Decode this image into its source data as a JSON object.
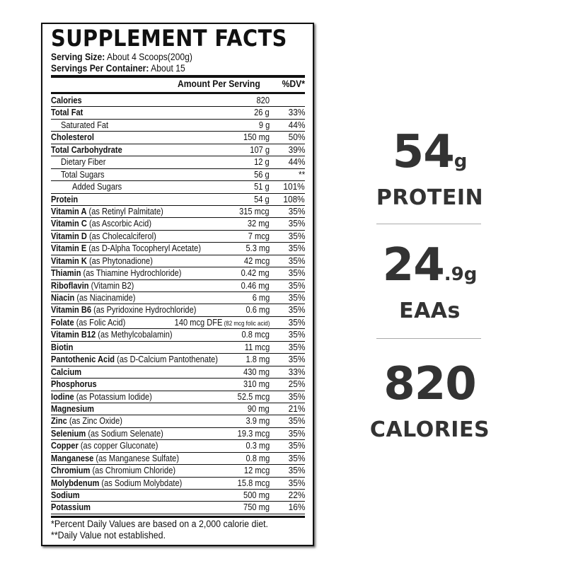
{
  "label": {
    "title": "SUPPLEMENT FACTS",
    "serving_size_label": "Serving Size:",
    "serving_size": " About 4 Scoops(200g)",
    "servings_label": "Servings Per Container:",
    "servings": " About 15",
    "amount_header": "Amount Per Serving",
    "dv_header": "%DV*",
    "rows": [
      {
        "name": "Calories",
        "sub": "",
        "amount": "820",
        "dv": "",
        "indent": 0
      },
      {
        "name": "Total Fat",
        "sub": "",
        "amount": "26 g",
        "dv": "33%",
        "indent": 0
      },
      {
        "name": "",
        "sub": "Saturated Fat",
        "amount": "9 g",
        "dv": "44%",
        "indent": 1
      },
      {
        "name": "Cholesterol",
        "sub": "",
        "amount": "150 mg",
        "dv": "50%",
        "indent": 0
      },
      {
        "name": "Total Carbohydrate",
        "sub": "",
        "amount": "107 g",
        "dv": "39%",
        "indent": 0
      },
      {
        "name": "",
        "sub": "Dietary Fiber",
        "amount": "12 g",
        "dv": "44%",
        "indent": 1
      },
      {
        "name": "",
        "sub": "Total Sugars",
        "amount": "56 g",
        "dv": "**",
        "indent": 1
      },
      {
        "name": "",
        "sub": "Added Sugars",
        "amount": "51 g",
        "dv": "101%",
        "indent": 2
      },
      {
        "name": "Protein",
        "sub": "",
        "amount": "54 g",
        "dv": "108%",
        "indent": 0
      },
      {
        "name": "Vitamin A",
        "sub": " (as Retinyl Palmitate)",
        "amount": "315 mcg",
        "dv": "35%",
        "indent": 0
      },
      {
        "name": "Vitamin C",
        "sub": " (as Ascorbic Acid)",
        "amount": "32 mg",
        "dv": "35%",
        "indent": 0
      },
      {
        "name": "Vitamin D",
        "sub": " (as Cholecalciferol)",
        "amount": "7 mcg",
        "dv": "35%",
        "indent": 0
      },
      {
        "name": "Vitamin E",
        "sub": " (as D-Alpha Tocopheryl Acetate)",
        "amount": "5.3 mg",
        "dv": "35%",
        "indent": 0
      },
      {
        "name": "Vitamin K",
        "sub": " (as Phytonadione)",
        "amount": "42 mcg",
        "dv": "35%",
        "indent": 0
      },
      {
        "name": "Thiamin",
        "sub": " (as Thiamine Hydrochloride)",
        "amount": "0.42 mg",
        "dv": "35%",
        "indent": 0
      },
      {
        "name": "Riboflavin",
        "sub": " (Vitamin B2)",
        "amount": "0.46 mg",
        "dv": "35%",
        "indent": 0
      },
      {
        "name": "Niacin",
        "sub": " (as Niacinamide)",
        "amount": "6 mg",
        "dv": "35%",
        "indent": 0
      },
      {
        "name": "Vitamin B6",
        "sub": " (as Pyridoxine Hydrochloride)",
        "amount": "0.6 mg",
        "dv": "35%",
        "indent": 0
      },
      {
        "name": "Folate",
        "sub": " (as Folic Acid)",
        "amount": "140 mcg DFE",
        "amount_note": " (82 mcg folic acid)",
        "dv": "35%",
        "indent": 0
      },
      {
        "name": "Vitamin B12",
        "sub": " (as Methylcobalamin)",
        "amount": "0.8 mcg",
        "dv": "35%",
        "indent": 0
      },
      {
        "name": "Biotin",
        "sub": "",
        "amount": "11 mcg",
        "dv": "35%",
        "indent": 0
      },
      {
        "name": "Pantothenic Acid",
        "sub": " (as D-Calcium Pantothenate)",
        "amount": "1.8 mg",
        "dv": "35%",
        "indent": 0
      },
      {
        "name": "Calcium",
        "sub": "",
        "amount": "430 mg",
        "dv": "33%",
        "indent": 0
      },
      {
        "name": "Phosphorus",
        "sub": "",
        "amount": "310 mg",
        "dv": "25%",
        "indent": 0
      },
      {
        "name": "Iodine",
        "sub": " (as Potassium Iodide)",
        "amount": "52.5 mcg",
        "dv": "35%",
        "indent": 0
      },
      {
        "name": "Magnesium",
        "sub": "",
        "amount": "90 mg",
        "dv": "21%",
        "indent": 0
      },
      {
        "name": "Zinc",
        "sub": " (as Zinc Oxide)",
        "amount": "3.9 mg",
        "dv": "35%",
        "indent": 0
      },
      {
        "name": "Selenium",
        "sub": " (as Sodium Selenate)",
        "amount": "19.3 mcg",
        "dv": "35%",
        "indent": 0
      },
      {
        "name": "Copper",
        "sub": " (as copper Gluconate)",
        "amount": "0.3 mg",
        "dv": "35%",
        "indent": 0
      },
      {
        "name": "Manganese",
        "sub": " (as Manganese Sulfate)",
        "amount": "0.8 mg",
        "dv": "35%",
        "indent": 0
      },
      {
        "name": "Chromium",
        "sub": " (as Chromium Chloride)",
        "amount": "12 mcg",
        "dv": "35%",
        "indent": 0
      },
      {
        "name": "Molybdenum",
        "sub": " (as Sodium Molybdate)",
        "amount": "15.8 mcg",
        "dv": "35%",
        "indent": 0
      },
      {
        "name": "Sodium",
        "sub": "",
        "amount": "500 mg",
        "dv": "22%",
        "indent": 0
      },
      {
        "name": "Potassium",
        "sub": "",
        "amount": "750 mg",
        "dv": "16%",
        "indent": 0
      }
    ],
    "footnote1": "*Percent Daily Values are based on a 2,000 calorie diet.",
    "footnote2": "**Daily Value not established."
  },
  "stats": [
    {
      "value": "54",
      "unit": "g",
      "caption": "PROTEIN"
    },
    {
      "value": "24",
      "unit": ".9g",
      "caption": "EAAs"
    },
    {
      "value": "820",
      "unit": "",
      "caption": "CALORIES"
    }
  ],
  "colors": {
    "stat_text": "#333333",
    "label_ink": "#111111"
  }
}
